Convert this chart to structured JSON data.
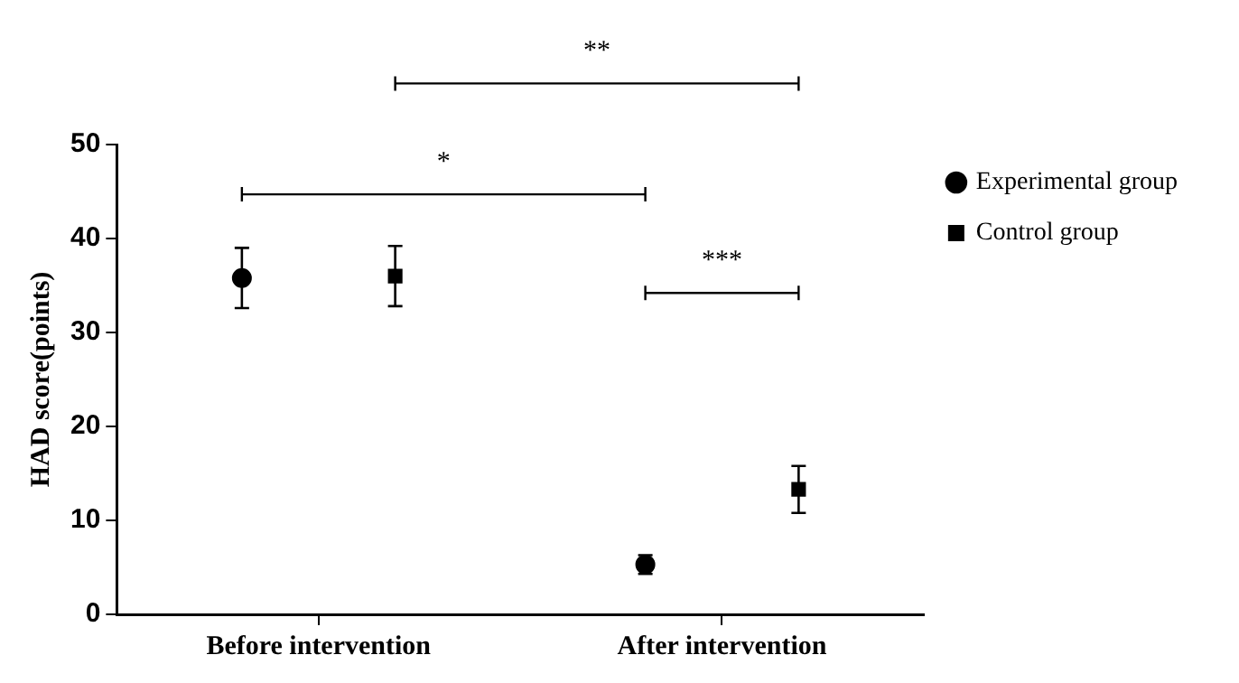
{
  "chart_data": {
    "type": "scatter",
    "ylabel": "HAD score(points)",
    "categories": [
      "Before intervention",
      "After intervention"
    ],
    "series": [
      {
        "name": "Experimental group",
        "color": "#000000",
        "marker": "circle",
        "values": [
          35.8,
          5.3
        ],
        "errors": [
          3.2,
          1.0
        ]
      },
      {
        "name": "Control group",
        "color": "#000000",
        "marker": "square",
        "values": [
          36.0,
          13.3
        ],
        "errors": [
          3.2,
          2.5
        ]
      }
    ],
    "ylim": [
      0,
      50
    ],
    "yticks": [
      0,
      10,
      20,
      30,
      40,
      50
    ],
    "grid": false,
    "legend": "top right",
    "annotations": [
      "*",
      "**",
      "***"
    ]
  }
}
